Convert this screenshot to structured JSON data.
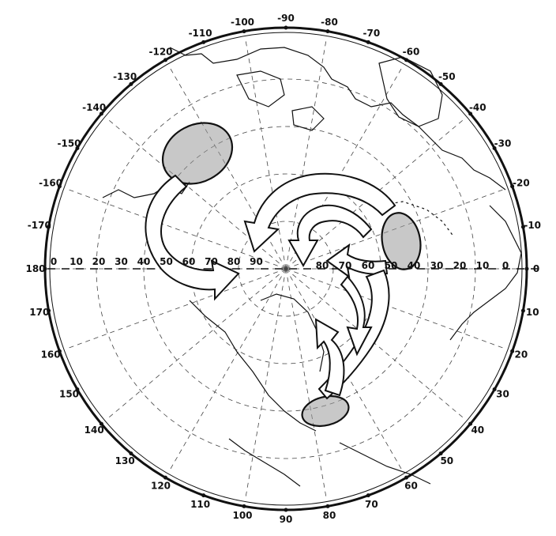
{
  "map": {
    "projection": "polar-stereographic",
    "colors": {
      "ink": "#111111",
      "paper": "#ffffff",
      "shade": "#9a9a9a"
    },
    "outer_lon_labels": [
      {
        "id": "lon-m100",
        "text": "-100"
      },
      {
        "id": "lon-m90",
        "text": "-90"
      },
      {
        "id": "lon-m80",
        "text": "-80"
      },
      {
        "id": "lon-m70",
        "text": "-70"
      },
      {
        "id": "lon-m60",
        "text": "-60"
      },
      {
        "id": "lon-m50",
        "text": "-50"
      },
      {
        "id": "lon-m40",
        "text": "-40"
      },
      {
        "id": "lon-m30",
        "text": "-30"
      },
      {
        "id": "lon-m20",
        "text": "-20"
      },
      {
        "id": "lon-m10",
        "text": "-10"
      },
      {
        "id": "lon-0",
        "text": "0"
      },
      {
        "id": "lon-10",
        "text": "10"
      },
      {
        "id": "lon-20",
        "text": "20"
      },
      {
        "id": "lon-30",
        "text": "30"
      },
      {
        "id": "lon-40",
        "text": "40"
      },
      {
        "id": "lon-50",
        "text": "50"
      },
      {
        "id": "lon-60",
        "text": "60"
      },
      {
        "id": "lon-70",
        "text": "70"
      },
      {
        "id": "lon-80",
        "text": "80"
      },
      {
        "id": "lon-90",
        "text": "90"
      },
      {
        "id": "lon-100",
        "text": "100"
      },
      {
        "id": "lon-110",
        "text": "110"
      },
      {
        "id": "lon-120",
        "text": "120"
      },
      {
        "id": "lon-130",
        "text": "130"
      },
      {
        "id": "lon-140",
        "text": "140"
      },
      {
        "id": "lon-150",
        "text": "150"
      },
      {
        "id": "lon-160",
        "text": "160"
      },
      {
        "id": "lon-170",
        "text": "170"
      },
      {
        "id": "lon-180",
        "text": "180"
      },
      {
        "id": "lon-m170",
        "text": "-170"
      },
      {
        "id": "lon-m160",
        "text": "-160"
      },
      {
        "id": "lon-m150",
        "text": "-150"
      },
      {
        "id": "lon-m140",
        "text": "-140"
      },
      {
        "id": "lon-m130",
        "text": "-130"
      },
      {
        "id": "lon-m120",
        "text": "-120"
      },
      {
        "id": "lon-m110",
        "text": "-110"
      }
    ],
    "left_lat_labels": [
      "0",
      "10",
      "20",
      "30",
      "40",
      "50",
      "60",
      "70",
      "80",
      "90"
    ],
    "right_lat_labels": [
      "80",
      "70",
      "60",
      "50",
      "40",
      "30",
      "20",
      "10",
      "0"
    ],
    "shaded_regions": [
      {
        "id": "region-northwest",
        "label": ""
      },
      {
        "id": "region-east",
        "label": ""
      },
      {
        "id": "region-south",
        "label": ""
      }
    ],
    "flow_arrows": [
      {
        "id": "arrow-west-loop"
      },
      {
        "id": "arrow-central-loop"
      },
      {
        "id": "arrow-south-loop"
      }
    ]
  }
}
